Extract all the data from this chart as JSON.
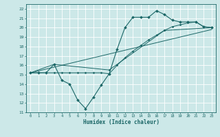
{
  "xlabel": "Humidex (Indice chaleur)",
  "xlim": [
    -0.5,
    23.5
  ],
  "ylim": [
    11,
    22.5
  ],
  "yticks": [
    11,
    12,
    13,
    14,
    15,
    16,
    17,
    18,
    19,
    20,
    21,
    22
  ],
  "xticks": [
    0,
    1,
    2,
    3,
    4,
    5,
    6,
    7,
    8,
    9,
    10,
    11,
    12,
    13,
    14,
    15,
    16,
    17,
    18,
    19,
    20,
    21,
    22,
    23
  ],
  "bg_color": "#cce8e8",
  "grid_color": "#ffffff",
  "line_color": "#1a6666",
  "series": [
    {
      "x": [
        0,
        1,
        2,
        3,
        4,
        5,
        6,
        7,
        8,
        9,
        10,
        11,
        12,
        13,
        14,
        15,
        16,
        17,
        18,
        19,
        20,
        21,
        22,
        23
      ],
      "y": [
        15.2,
        15.2,
        15.2,
        16.1,
        14.4,
        14.0,
        12.3,
        11.4,
        12.6,
        13.9,
        15.1,
        17.7,
        20.0,
        21.1,
        21.1,
        21.1,
        21.8,
        21.4,
        20.8,
        20.6,
        20.6,
        20.6,
        20.1,
        20.0
      ],
      "marker": "D",
      "markersize": 2.0,
      "linewidth": 0.8
    },
    {
      "x": [
        0,
        1,
        2,
        3,
        4,
        5,
        6,
        7,
        8,
        9,
        10,
        11,
        12,
        13,
        14,
        15,
        16,
        17,
        18,
        19,
        20,
        21,
        22,
        23
      ],
      "y": [
        15.2,
        15.2,
        15.2,
        15.2,
        15.2,
        15.2,
        15.2,
        15.2,
        15.2,
        15.2,
        15.1,
        16.0,
        16.8,
        17.5,
        18.1,
        18.7,
        19.2,
        19.7,
        20.1,
        20.3,
        20.5,
        20.6,
        20.1,
        20.0
      ],
      "marker": "D",
      "markersize": 1.5,
      "linewidth": 0.7
    },
    {
      "x": [
        0,
        3,
        10,
        17,
        23
      ],
      "y": [
        15.2,
        16.1,
        15.5,
        19.7,
        20.0
      ],
      "marker": "D",
      "markersize": 1.5,
      "linewidth": 0.7
    },
    {
      "x": [
        0,
        23
      ],
      "y": [
        15.2,
        19.8
      ],
      "marker": null,
      "markersize": 0,
      "linewidth": 0.7
    }
  ]
}
